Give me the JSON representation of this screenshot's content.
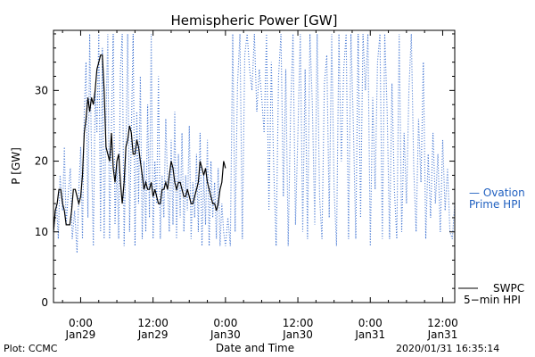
{
  "chart_data": {
    "type": "line",
    "title": "Hemispheric Power [GW]",
    "xlabel": "Date and Time",
    "ylabel": "P [GW]",
    "ylim": [
      0,
      38.5
    ],
    "yticks": [
      0,
      10,
      20,
      30
    ],
    "xlim_hours": [
      -4.5,
      62
    ],
    "xtick_labels": [
      {
        "x": 0,
        "lines": [
          "0:00",
          "Jan29"
        ]
      },
      {
        "x": 12,
        "lines": [
          "12:00",
          "Jan29"
        ]
      },
      {
        "x": 24,
        "lines": [
          "0:00",
          "Jan30"
        ]
      },
      {
        "x": 36,
        "lines": [
          "12:00",
          "Jan30"
        ]
      },
      {
        "x": 48,
        "lines": [
          "0:00",
          "Jan31"
        ]
      },
      {
        "x": 60,
        "lines": [
          "12:00",
          "Jan31"
        ]
      }
    ],
    "series": [
      {
        "name": "Ovation Prime HPI",
        "legend_lines": [
          "— Ovation",
          "Prime HPI"
        ],
        "style": "dotted",
        "color": "#3a6fd0",
        "x": [
          -4.5,
          -4.0,
          -3.7,
          -3.4,
          -3.0,
          -2.7,
          -2.4,
          -2.0,
          -1.7,
          -1.4,
          -1.0,
          -0.6,
          -0.3,
          0.0,
          0.3,
          0.6,
          0.9,
          1.2,
          1.5,
          1.8,
          2.1,
          2.4,
          2.7,
          3.0,
          3.3,
          3.6,
          3.9,
          4.2,
          4.5,
          4.8,
          5.1,
          5.4,
          5.7,
          6.0,
          6.3,
          6.6,
          6.9,
          7.2,
          7.5,
          7.8,
          8.1,
          8.4,
          8.7,
          9.0,
          9.3,
          9.6,
          9.9,
          10.2,
          10.5,
          10.8,
          11.1,
          11.4,
          11.7,
          12.0,
          12.3,
          12.6,
          12.9,
          13.2,
          13.5,
          13.8,
          14.1,
          14.4,
          14.7,
          15.0,
          15.3,
          15.6,
          15.9,
          16.2,
          16.5,
          16.8,
          17.1,
          17.4,
          17.7,
          18.0,
          18.3,
          18.6,
          18.9,
          19.2,
          19.5,
          19.8,
          20.1,
          20.4,
          20.7,
          21.0,
          21.3,
          21.6,
          21.9,
          22.2,
          22.5,
          22.8,
          23.1,
          23.4,
          23.7,
          24.0,
          24.4,
          24.8,
          25.2,
          25.6,
          26.0,
          26.4,
          26.8,
          27.2,
          27.6,
          28.0,
          28.4,
          28.8,
          29.2,
          29.6,
          30.0,
          30.4,
          30.8,
          31.2,
          31.6,
          32.0,
          32.4,
          32.8,
          33.2,
          33.6,
          34.0,
          34.4,
          34.8,
          35.2,
          35.6,
          36.0,
          36.4,
          36.8,
          37.2,
          37.6,
          38.0,
          38.4,
          38.8,
          39.2,
          39.6,
          40.0,
          40.4,
          40.8,
          41.2,
          41.6,
          42.0,
          42.4,
          42.8,
          43.2,
          43.6,
          44.0,
          44.4,
          44.8,
          45.2,
          45.6,
          46.0,
          46.4,
          46.8,
          47.2,
          47.6,
          48.0,
          48.4,
          48.8,
          49.2,
          49.6,
          50.0,
          50.4,
          50.8,
          51.2,
          51.6,
          52.0,
          52.4,
          52.8,
          53.2,
          53.6,
          54.0,
          54.4,
          54.8,
          55.2,
          55.6,
          56.0,
          56.4,
          56.8,
          57.2,
          57.6,
          58.0,
          58.4,
          58.8,
          59.2,
          59.6,
          60.0,
          60.4,
          60.8,
          61.2,
          61.6,
          62.0
        ],
        "values": [
          10,
          14,
          9,
          18,
          13,
          22,
          11,
          16,
          19,
          9,
          13,
          7,
          16,
          22,
          9,
          27,
          34,
          12,
          38,
          21,
          8,
          30,
          24,
          38,
          10,
          36,
          9,
          26,
          38,
          9,
          25,
          38,
          11,
          20,
          9,
          33,
          38,
          8,
          22,
          38,
          10,
          24,
          38,
          8,
          27,
          14,
          32,
          9,
          20,
          10,
          28,
          12,
          38,
          9,
          20,
          14,
          32,
          9,
          18,
          12,
          26,
          17,
          10,
          23,
          11,
          27,
          9,
          21,
          12,
          24,
          10,
          18,
          13,
          25,
          9,
          17,
          12,
          21,
          10,
          24,
          8,
          18,
          11,
          23,
          8,
          20,
          12,
          17,
          9,
          19,
          8,
          14,
          10,
          8,
          12,
          8,
          38,
          10,
          31,
          38,
          9,
          35,
          38,
          33,
          30,
          38,
          27,
          33,
          29,
          24,
          38,
          13,
          34,
          19,
          8,
          32,
          38,
          15,
          33,
          8,
          27,
          38,
          11,
          24,
          38,
          10,
          33,
          9,
          38,
          28,
          11,
          38,
          15,
          9,
          31,
          35,
          12,
          38,
          16,
          8,
          38,
          20,
          33,
          38,
          9,
          38,
          25,
          9,
          38,
          12,
          38,
          30,
          38,
          8,
          29,
          16,
          34,
          38,
          9,
          38,
          27,
          9,
          31,
          16,
          9,
          38,
          10,
          24,
          14,
          30,
          38,
          19,
          10,
          26,
          17,
          34,
          9,
          21,
          12,
          24,
          14,
          21,
          10,
          23,
          13,
          19,
          10,
          9,
          14
        ]
      },
      {
        "name": "SWPC 5-min HPI",
        "legend_lines": [
          "SWPC",
          "5−min HPI"
        ],
        "style": "solid",
        "color": "#000000",
        "x": [
          -4.5,
          -4.2,
          -3.9,
          -3.6,
          -3.3,
          -3.0,
          -2.7,
          -2.4,
          -2.1,
          -1.8,
          -1.5,
          -1.2,
          -0.9,
          -0.6,
          -0.3,
          0.0,
          0.3,
          0.6,
          0.9,
          1.2,
          1.5,
          1.8,
          2.1,
          2.4,
          2.7,
          3.0,
          3.3,
          3.6,
          3.9,
          4.2,
          4.5,
          4.8,
          5.1,
          5.4,
          5.7,
          6.0,
          6.3,
          6.6,
          6.9,
          7.2,
          7.5,
          7.8,
          8.1,
          8.4,
          8.7,
          9.0,
          9.3,
          9.6,
          9.9,
          10.2,
          10.5,
          10.8,
          11.1,
          11.4,
          11.7,
          12.0,
          12.3,
          12.6,
          12.9,
          13.2,
          13.5,
          13.8,
          14.1,
          14.4,
          14.7,
          15.0,
          15.3,
          15.6,
          15.9,
          16.2,
          16.5,
          16.8,
          17.1,
          17.4,
          17.7,
          18.0,
          18.3,
          18.6,
          18.9,
          19.2,
          19.5,
          19.8,
          20.1,
          20.4,
          20.7,
          21.0,
          21.3,
          21.6,
          21.9,
          22.2,
          22.5,
          22.8,
          23.1,
          23.4,
          23.7,
          24.0
        ],
        "values": [
          10,
          13,
          14,
          16,
          16,
          14,
          13,
          11,
          11,
          11,
          13,
          16,
          16,
          15,
          14,
          15,
          18,
          24,
          26,
          29,
          27,
          29,
          28,
          30,
          33,
          34,
          35,
          35,
          30,
          22,
          21,
          20,
          24,
          19,
          17,
          20,
          21,
          17,
          14,
          17,
          22,
          23,
          25,
          24,
          21,
          21,
          23,
          22,
          20,
          18,
          16,
          17,
          16,
          16,
          17,
          15,
          16,
          15,
          14,
          14,
          16,
          16,
          17,
          16,
          18,
          20,
          19,
          17,
          16,
          17,
          17,
          16,
          15,
          15,
          16,
          15,
          14,
          14,
          15,
          16,
          17,
          20,
          19,
          18,
          19,
          17,
          16,
          15,
          14,
          14,
          13,
          14,
          16,
          17,
          20,
          19
        ]
      }
    ]
  },
  "footer": {
    "plot_credit": "Plot: CCMC",
    "timestamp": "2020/01/31 16:35:14"
  }
}
